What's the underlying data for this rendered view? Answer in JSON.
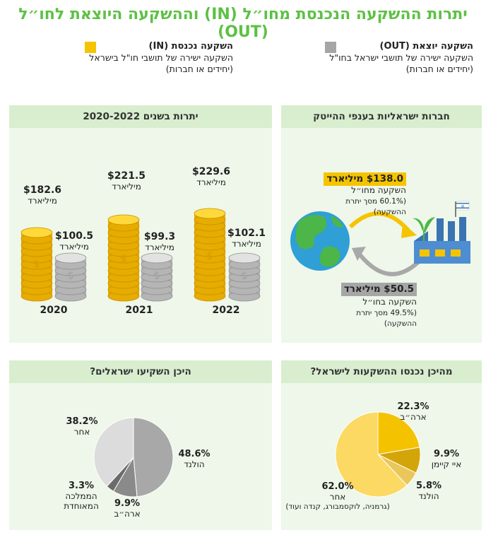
{
  "title": "יתרות ההשקעה הנכנסת מחו״ל (IN) וההשקעה היוצאת לחו״ל (OUT)",
  "legend": {
    "in": {
      "head": "השקעה נכנסת (IN)",
      "line1": "השקעה ישירה של תושבי חו\"ל בישראל",
      "line2": "(יחידים או חברות)",
      "color": "#f5c400"
    },
    "out": {
      "head": "השקעה יוצאת (OUT)",
      "line1": "השקעה ישירה של תושבי ישראל בחו\"ל",
      "line2": "(יחידים או חברות)",
      "color": "#a6a6a6"
    }
  },
  "panels": {
    "balances": "יתרות בשנים 2020-2022",
    "hitech": "חברות ישראליות בענפי ההייטק",
    "invested": "היכן השקיעו ישראלים?",
    "came_from": "מהיכן נכנסו ההשקעות לישראל?"
  },
  "hitech": {
    "in_amount": "$138.0 מיליארד",
    "in_label": "השקעה מחו״ל",
    "in_share": "(60.1% מסך יתרת ההשקעה)",
    "out_amount": "$50.5 מיליארד",
    "out_label": "השקעה בחו״ל",
    "out_share": "(49.5% מסך יתרת ההשקעה)"
  },
  "unit_label": "מיליארד",
  "chart_data": [
    {
      "type": "bar",
      "title": "יתרות בשנים 2020-2022",
      "categories": [
        "2020",
        "2021",
        "2022"
      ],
      "series": [
        {
          "name": "השקעה נכנסת (IN)",
          "values": [
            182.6,
            221.5,
            229.6
          ],
          "labels": [
            "$182.6",
            "$221.5",
            "$229.6"
          ],
          "color": "#f5c400"
        },
        {
          "name": "השקעה יוצאת (OUT)",
          "values": [
            100.5,
            99.3,
            102.1
          ],
          "labels": [
            "$100.5",
            "$99.3",
            "$102.1"
          ],
          "color": "#b8b8b8"
        }
      ]
    },
    {
      "type": "pie",
      "title": "מהיכן נכנסו ההשקעות לישראל?",
      "slices": [
        {
          "label": "ארה״ב",
          "value": 22.3,
          "display": "22.3%",
          "color": "#f5c200"
        },
        {
          "label": "איי קיימן",
          "value": 9.9,
          "display": "9.9%",
          "color": "#d4a508"
        },
        {
          "label": "הולנד",
          "value": 5.8,
          "display": "5.8%",
          "color": "#e9c75a"
        },
        {
          "label": "אחר",
          "value": 62.0,
          "display": "62.0%",
          "note": "(גרמניה, לוקסמבורג, קנדה ועוד)",
          "color": "#fbd962"
        }
      ]
    },
    {
      "type": "pie",
      "title": "היכן השקיעו ישראלים?",
      "slices": [
        {
          "label": "הולנד",
          "value": 48.6,
          "display": "48.6%",
          "color": "#a8a8a8"
        },
        {
          "label": "ארה״ב",
          "value": 9.9,
          "display": "9.9%",
          "color": "#8a8a8a"
        },
        {
          "label": "הממלכה המאוחדת",
          "value": 3.3,
          "display": "3.3%",
          "color": "#6b6b6b"
        },
        {
          "label": "אחר",
          "value": 38.2,
          "display": "38.2%",
          "color": "#dcdcdc"
        }
      ]
    }
  ]
}
